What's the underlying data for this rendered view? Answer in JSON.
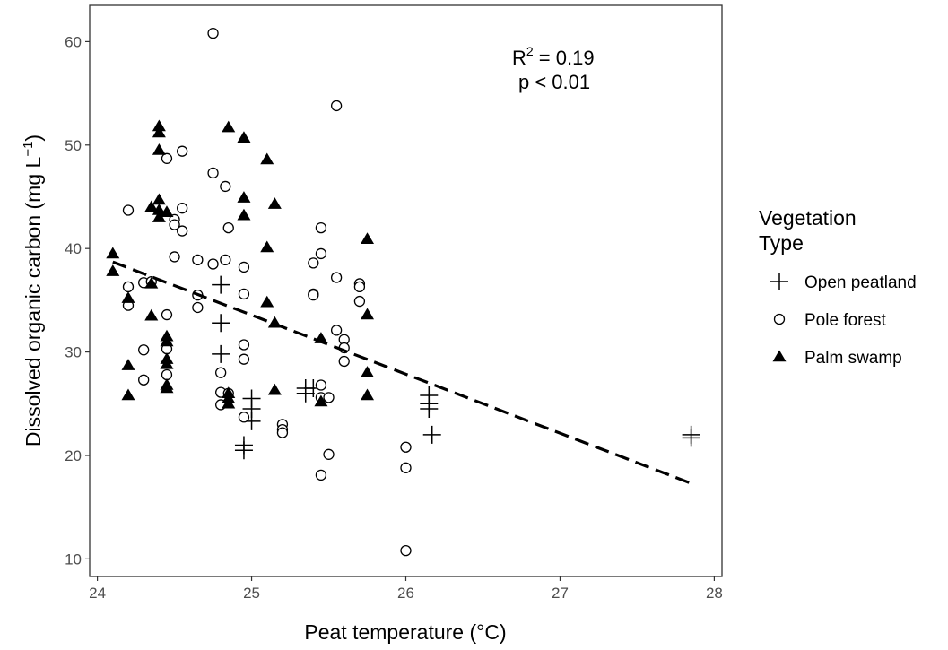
{
  "chart_data": {
    "type": "scatter",
    "xlabel": "Peat temperature (°C)",
    "ylabel": {
      "base": "Dissolved organic carbon (mg L",
      "superscript": "−1",
      "close": ")"
    },
    "xlim": [
      23.95,
      28.05
    ],
    "ylim": [
      8.3,
      63.5
    ],
    "x_ticks": [
      24,
      25,
      26,
      27,
      28
    ],
    "y_ticks": [
      10,
      20,
      30,
      40,
      50,
      60
    ],
    "grid": false,
    "annotations": {
      "r2_prefix": "R",
      "r2_superscript": "2",
      "r2_suffix": " = 0.19",
      "p_text": "p < 0.01"
    },
    "trend_line": {
      "style": "dashed",
      "x": [
        24.1,
        27.85
      ],
      "y": [
        38.7,
        17.3
      ]
    },
    "legend": {
      "title_line1": "Vegetation",
      "title_line2": "Type",
      "position": "right"
    },
    "series": [
      {
        "name": "Open peatland",
        "marker": "plus",
        "points": [
          [
            24.8,
            36.5
          ],
          [
            24.8,
            32.8
          ],
          [
            24.8,
            29.8
          ],
          [
            24.95,
            21.0
          ],
          [
            24.95,
            20.5
          ],
          [
            25.0,
            25.5
          ],
          [
            25.0,
            24.5
          ],
          [
            25.0,
            23.3
          ],
          [
            25.35,
            26.5
          ],
          [
            25.35,
            26.0
          ],
          [
            25.4,
            26.5
          ],
          [
            26.15,
            25.8
          ],
          [
            26.15,
            25.0
          ],
          [
            26.15,
            24.5
          ],
          [
            26.17,
            22.0
          ],
          [
            27.85,
            22.0
          ],
          [
            27.85,
            21.7
          ]
        ]
      },
      {
        "name": "Pole forest",
        "marker": "circle",
        "points": [
          [
            24.75,
            60.8
          ],
          [
            24.2,
            43.7
          ],
          [
            24.2,
            36.3
          ],
          [
            24.2,
            34.5
          ],
          [
            24.3,
            36.7
          ],
          [
            24.35,
            36.8
          ],
          [
            24.3,
            30.2
          ],
          [
            24.3,
            27.3
          ],
          [
            24.45,
            48.7
          ],
          [
            24.55,
            49.4
          ],
          [
            24.5,
            42.8
          ],
          [
            24.5,
            42.3
          ],
          [
            24.55,
            43.9
          ],
          [
            24.55,
            41.7
          ],
          [
            24.5,
            39.2
          ],
          [
            24.45,
            33.6
          ],
          [
            24.45,
            30.3
          ],
          [
            24.45,
            27.8
          ],
          [
            24.65,
            38.9
          ],
          [
            24.65,
            35.5
          ],
          [
            24.65,
            34.3
          ],
          [
            24.75,
            47.3
          ],
          [
            24.75,
            38.5
          ],
          [
            24.83,
            46.0
          ],
          [
            24.85,
            42.0
          ],
          [
            24.83,
            38.9
          ],
          [
            24.8,
            28.0
          ],
          [
            24.8,
            26.1
          ],
          [
            24.8,
            24.9
          ],
          [
            24.85,
            26.0
          ],
          [
            24.95,
            38.2
          ],
          [
            24.95,
            35.6
          ],
          [
            24.95,
            30.7
          ],
          [
            24.95,
            29.3
          ],
          [
            24.95,
            23.7
          ],
          [
            25.2,
            23.0
          ],
          [
            25.2,
            22.5
          ],
          [
            25.2,
            22.2
          ],
          [
            25.4,
            38.6
          ],
          [
            25.4,
            35.6
          ],
          [
            25.4,
            35.5
          ],
          [
            25.45,
            42.0
          ],
          [
            25.45,
            39.5
          ],
          [
            25.45,
            26.8
          ],
          [
            25.45,
            25.6
          ],
          [
            25.45,
            18.1
          ],
          [
            25.5,
            25.6
          ],
          [
            25.5,
            20.1
          ],
          [
            25.55,
            53.8
          ],
          [
            25.55,
            37.2
          ],
          [
            25.55,
            32.1
          ],
          [
            25.6,
            31.2
          ],
          [
            25.6,
            30.4
          ],
          [
            25.6,
            29.1
          ],
          [
            25.7,
            36.6
          ],
          [
            25.7,
            36.3
          ],
          [
            25.7,
            34.9
          ],
          [
            26.0,
            20.8
          ],
          [
            26.0,
            18.8
          ],
          [
            26.0,
            10.8
          ]
        ]
      },
      {
        "name": "Palm swamp",
        "marker": "triangle",
        "points": [
          [
            24.1,
            39.5
          ],
          [
            24.1,
            37.8
          ],
          [
            24.2,
            35.2
          ],
          [
            24.2,
            28.7
          ],
          [
            24.2,
            25.8
          ],
          [
            24.35,
            44.0
          ],
          [
            24.35,
            36.6
          ],
          [
            24.35,
            33.5
          ],
          [
            24.4,
            51.8
          ],
          [
            24.4,
            51.2
          ],
          [
            24.4,
            49.5
          ],
          [
            24.4,
            44.7
          ],
          [
            24.4,
            43.7
          ],
          [
            24.4,
            43.0
          ],
          [
            24.45,
            43.5
          ],
          [
            24.45,
            31.5
          ],
          [
            24.45,
            31.0
          ],
          [
            24.45,
            29.3
          ],
          [
            24.45,
            28.8
          ],
          [
            24.45,
            26.8
          ],
          [
            24.45,
            26.5
          ],
          [
            24.85,
            51.7
          ],
          [
            24.85,
            26.0
          ],
          [
            24.85,
            25.5
          ],
          [
            24.85,
            25.0
          ],
          [
            24.95,
            50.7
          ],
          [
            24.95,
            44.9
          ],
          [
            24.95,
            43.2
          ],
          [
            25.1,
            48.6
          ],
          [
            25.1,
            40.1
          ],
          [
            25.1,
            34.8
          ],
          [
            25.15,
            44.3
          ],
          [
            25.15,
            32.8
          ],
          [
            25.15,
            26.3
          ],
          [
            25.45,
            31.3
          ],
          [
            25.45,
            25.2
          ],
          [
            25.75,
            40.9
          ],
          [
            25.75,
            33.6
          ],
          [
            25.75,
            28.0
          ],
          [
            25.75,
            25.8
          ]
        ]
      }
    ]
  }
}
